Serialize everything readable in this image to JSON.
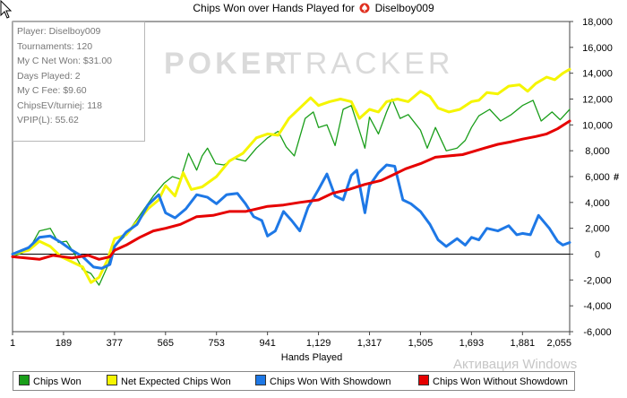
{
  "title_prefix": "Chips Won over Hands Played for",
  "player_name": "Diselboy009",
  "stats": [
    "Player: Diselboy009",
    "Tournaments: 120",
    "My C Net Won: $31.00",
    "Days Played: 2",
    "My C Fee: $9.60",
    "ChipsEV/turniej: 118",
    "VPIP(L): 55.62"
  ],
  "watermark": {
    "poker": "POKER",
    "tracker": "TRACKER"
  },
  "os_watermark": "Активация Windows",
  "colors": {
    "green": "#1a9e1a",
    "yellow": "#f5f500",
    "blue": "#1e78e6",
    "red": "#e60000"
  },
  "chart_data": {
    "type": "line",
    "xlabel": "Hands Played",
    "ylabel": "#",
    "xlim": [
      1,
      2055
    ],
    "ylim": [
      -6000,
      18000
    ],
    "x_ticks": [
      1,
      189,
      377,
      565,
      753,
      941,
      1129,
      1317,
      1505,
      1693,
      1881,
      2055
    ],
    "x_tick_labels": [
      "1",
      "189",
      "377",
      "565",
      "753",
      "941",
      "1,129",
      "1,317",
      "1,505",
      "1,693",
      "1,881",
      "2,055"
    ],
    "y_ticks": [
      18000,
      16000,
      14000,
      12000,
      10000,
      8000,
      6000,
      4000,
      2000,
      0,
      -2000,
      -4000,
      -6000
    ],
    "y_tick_labels": [
      "18,000",
      "16,000",
      "14,000",
      "12,000",
      "10,000",
      "8,000",
      "6,000",
      "4,000",
      "2,000",
      "0",
      "-2,000",
      "-4,000",
      "-6,000"
    ],
    "grid": false,
    "legend_position": "bottom",
    "series": [
      {
        "name": "Chips Won",
        "color": "#1a9e1a",
        "points": [
          [
            1,
            -200
          ],
          [
            60,
            300
          ],
          [
            100,
            1800
          ],
          [
            140,
            2000
          ],
          [
            170,
            900
          ],
          [
            200,
            1000
          ],
          [
            230,
            0
          ],
          [
            260,
            -1200
          ],
          [
            290,
            -1500
          ],
          [
            320,
            -2400
          ],
          [
            350,
            -1000
          ],
          [
            377,
            600
          ],
          [
            420,
            1500
          ],
          [
            470,
            3000
          ],
          [
            520,
            4500
          ],
          [
            560,
            5500
          ],
          [
            590,
            6000
          ],
          [
            620,
            5800
          ],
          [
            650,
            7800
          ],
          [
            680,
            6500
          ],
          [
            700,
            7600
          ],
          [
            720,
            8200
          ],
          [
            750,
            7000
          ],
          [
            780,
            6900
          ],
          [
            820,
            7400
          ],
          [
            860,
            7200
          ],
          [
            900,
            8200
          ],
          [
            941,
            9000
          ],
          [
            980,
            9500
          ],
          [
            1010,
            8300
          ],
          [
            1040,
            7600
          ],
          [
            1080,
            10500
          ],
          [
            1110,
            11000
          ],
          [
            1129,
            9800
          ],
          [
            1160,
            10000
          ],
          [
            1190,
            8400
          ],
          [
            1220,
            11200
          ],
          [
            1250,
            11500
          ],
          [
            1270,
            10200
          ],
          [
            1300,
            8200
          ],
          [
            1317,
            10600
          ],
          [
            1350,
            9300
          ],
          [
            1380,
            11000
          ],
          [
            1400,
            12000
          ],
          [
            1430,
            10500
          ],
          [
            1460,
            10800
          ],
          [
            1505,
            9600
          ],
          [
            1530,
            8200
          ],
          [
            1560,
            9800
          ],
          [
            1600,
            8000
          ],
          [
            1640,
            8200
          ],
          [
            1670,
            8800
          ],
          [
            1693,
            9800
          ],
          [
            1720,
            10700
          ],
          [
            1760,
            11200
          ],
          [
            1800,
            10300
          ],
          [
            1840,
            10800
          ],
          [
            1881,
            11500
          ],
          [
            1920,
            11900
          ],
          [
            1950,
            10300
          ],
          [
            1990,
            11000
          ],
          [
            2020,
            10400
          ],
          [
            2055,
            11200
          ]
        ]
      },
      {
        "name": "Net Expected Chips Won",
        "color": "#f5f500",
        "points": [
          [
            1,
            0
          ],
          [
            60,
            300
          ],
          [
            100,
            1000
          ],
          [
            140,
            600
          ],
          [
            180,
            -200
          ],
          [
            220,
            -600
          ],
          [
            260,
            -1000
          ],
          [
            290,
            -2200
          ],
          [
            320,
            -1800
          ],
          [
            350,
            -500
          ],
          [
            377,
            1200
          ],
          [
            420,
            1500
          ],
          [
            460,
            2500
          ],
          [
            500,
            3500
          ],
          [
            540,
            4200
          ],
          [
            565,
            5300
          ],
          [
            600,
            4500
          ],
          [
            630,
            6300
          ],
          [
            660,
            5000
          ],
          [
            700,
            5200
          ],
          [
            753,
            6000
          ],
          [
            800,
            7200
          ],
          [
            850,
            7800
          ],
          [
            900,
            9000
          ],
          [
            941,
            9300
          ],
          [
            980,
            9200
          ],
          [
            1020,
            10500
          ],
          [
            1060,
            11300
          ],
          [
            1100,
            12100
          ],
          [
            1129,
            11500
          ],
          [
            1170,
            11800
          ],
          [
            1210,
            12000
          ],
          [
            1250,
            11800
          ],
          [
            1280,
            10500
          ],
          [
            1317,
            11200
          ],
          [
            1350,
            11000
          ],
          [
            1380,
            11800
          ],
          [
            1420,
            12000
          ],
          [
            1460,
            11800
          ],
          [
            1505,
            12600
          ],
          [
            1540,
            12200
          ],
          [
            1570,
            11300
          ],
          [
            1610,
            11000
          ],
          [
            1650,
            11200
          ],
          [
            1693,
            11800
          ],
          [
            1720,
            11900
          ],
          [
            1750,
            12500
          ],
          [
            1790,
            12400
          ],
          [
            1830,
            13000
          ],
          [
            1870,
            13100
          ],
          [
            1900,
            12600
          ],
          [
            1930,
            13200
          ],
          [
            1970,
            13700
          ],
          [
            2000,
            13500
          ],
          [
            2030,
            14000
          ],
          [
            2055,
            14300
          ]
        ]
      },
      {
        "name": "Chips Won With Showdown",
        "color": "#1e78e6",
        "points": [
          [
            1,
            0
          ],
          [
            60,
            500
          ],
          [
            100,
            1300
          ],
          [
            140,
            1400
          ],
          [
            180,
            900
          ],
          [
            220,
            300
          ],
          [
            260,
            -200
          ],
          [
            300,
            -1000
          ],
          [
            330,
            -1100
          ],
          [
            360,
            -800
          ],
          [
            377,
            600
          ],
          [
            420,
            1700
          ],
          [
            460,
            2300
          ],
          [
            500,
            3800
          ],
          [
            540,
            4600
          ],
          [
            565,
            3200
          ],
          [
            600,
            2800
          ],
          [
            640,
            3500
          ],
          [
            680,
            4600
          ],
          [
            720,
            4400
          ],
          [
            753,
            3900
          ],
          [
            790,
            4600
          ],
          [
            830,
            4700
          ],
          [
            860,
            3900
          ],
          [
            890,
            2900
          ],
          [
            920,
            2600
          ],
          [
            941,
            1400
          ],
          [
            970,
            1800
          ],
          [
            1000,
            3300
          ],
          [
            1030,
            2600
          ],
          [
            1060,
            1800
          ],
          [
            1090,
            3600
          ],
          [
            1129,
            5000
          ],
          [
            1160,
            6200
          ],
          [
            1190,
            4500
          ],
          [
            1220,
            4200
          ],
          [
            1250,
            6100
          ],
          [
            1270,
            6500
          ],
          [
            1300,
            3200
          ],
          [
            1317,
            5300
          ],
          [
            1350,
            6300
          ],
          [
            1380,
            6900
          ],
          [
            1410,
            6800
          ],
          [
            1440,
            4200
          ],
          [
            1470,
            3900
          ],
          [
            1505,
            3300
          ],
          [
            1540,
            2300
          ],
          [
            1570,
            1100
          ],
          [
            1600,
            600
          ],
          [
            1640,
            1200
          ],
          [
            1670,
            700
          ],
          [
            1693,
            1300
          ],
          [
            1720,
            1100
          ],
          [
            1750,
            2000
          ],
          [
            1790,
            1800
          ],
          [
            1830,
            2200
          ],
          [
            1860,
            1500
          ],
          [
            1881,
            1600
          ],
          [
            1910,
            1500
          ],
          [
            1940,
            3000
          ],
          [
            1980,
            2000
          ],
          [
            2010,
            1000
          ],
          [
            2030,
            700
          ],
          [
            2055,
            900
          ]
        ]
      },
      {
        "name": "Chips Won Without Showdown",
        "color": "#e60000",
        "points": [
          [
            1,
            -200
          ],
          [
            100,
            -400
          ],
          [
            150,
            -100
          ],
          [
            220,
            -300
          ],
          [
            280,
            -100
          ],
          [
            320,
            -400
          ],
          [
            360,
            -200
          ],
          [
            377,
            300
          ],
          [
            420,
            700
          ],
          [
            470,
            1300
          ],
          [
            520,
            1800
          ],
          [
            565,
            2000
          ],
          [
            620,
            2300
          ],
          [
            680,
            2900
          ],
          [
            740,
            3000
          ],
          [
            800,
            3300
          ],
          [
            860,
            3300
          ],
          [
            941,
            3700
          ],
          [
            1000,
            3800
          ],
          [
            1060,
            4000
          ],
          [
            1129,
            4200
          ],
          [
            1180,
            4700
          ],
          [
            1240,
            5000
          ],
          [
            1300,
            5400
          ],
          [
            1360,
            5700
          ],
          [
            1400,
            6100
          ],
          [
            1450,
            6600
          ],
          [
            1505,
            7000
          ],
          [
            1560,
            7500
          ],
          [
            1610,
            7600
          ],
          [
            1660,
            7700
          ],
          [
            1693,
            7900
          ],
          [
            1740,
            8200
          ],
          [
            1790,
            8500
          ],
          [
            1840,
            8700
          ],
          [
            1881,
            8900
          ],
          [
            1930,
            9100
          ],
          [
            1970,
            9300
          ],
          [
            2010,
            9700
          ],
          [
            2040,
            10100
          ],
          [
            2055,
            10300
          ]
        ]
      }
    ]
  }
}
